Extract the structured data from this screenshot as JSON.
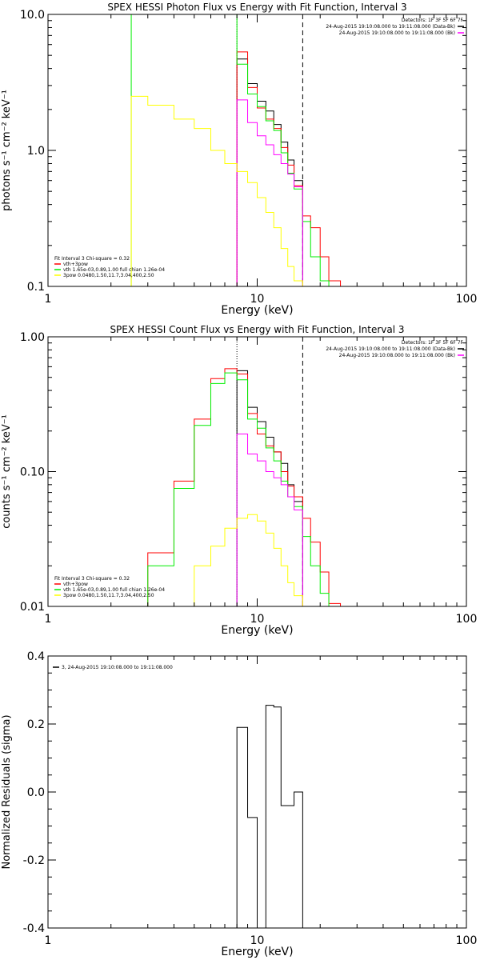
{
  "chart_data": [
    {
      "type": "line",
      "title": "SPEX HESSI Photon Flux vs Energy with Fit Function, Interval 3",
      "xlabel": "Energy (keV)",
      "ylabel": "photons s⁻¹ cm⁻² keV⁻¹",
      "xscale": "log",
      "yscale": "log",
      "xlim": [
        1,
        100
      ],
      "ylim": [
        0.1,
        10
      ],
      "x_ticks": [
        1,
        10,
        100
      ],
      "x_tick_labels": [
        "1",
        "10",
        "100"
      ],
      "y_ticks": [
        0.1,
        1,
        10
      ],
      "y_tick_labels": [
        "0.1",
        "1.0",
        "10.0"
      ],
      "vlines": [
        {
          "x": 8.0,
          "style": "dotted",
          "color": "#000000"
        },
        {
          "x": 16.5,
          "style": "dashed",
          "color": "#000000"
        }
      ],
      "header": [
        "Detectors: 1F 3F 5F 6F 7F"
      ],
      "info_legend": [
        {
          "text": "24-Aug-2015 19:10:08.000 to 19:11:08.000 (Data-Bk)",
          "color": "#000000"
        },
        {
          "text": "24-Aug-2015 19:10:08.000 to 19:11:08.000 (Bk)",
          "color": "#ff00ff"
        }
      ],
      "fit_legend": {
        "header": "Fit Interval 3   Chi-square = 0.32",
        "items": [
          {
            "text": "vth+3pow",
            "color": "#ff0000"
          },
          {
            "text": "vth 1.65e-03,0.89,1.00  full chian 1.26e-04",
            "color": "#00ee00"
          },
          {
            "text": "3pow 0.0480,1.50,11.7,3.04,400,2.50",
            "color": "#ffff00"
          }
        ]
      },
      "series": [
        {
          "color": "#000000",
          "steps": [
            [
              8,
              9,
              4.7
            ],
            [
              9,
              10,
              3.1
            ],
            [
              10,
              11,
              2.3
            ],
            [
              11,
              12,
              1.95
            ],
            [
              12,
              13,
              1.55
            ],
            [
              13,
              14,
              1.15
            ],
            [
              14,
              15,
              0.85
            ],
            [
              15,
              16.5,
              0.6
            ]
          ]
        },
        {
          "color": "#ff0000",
          "steps": [
            [
              8,
              9,
              5.3
            ],
            [
              9,
              10,
              2.9
            ],
            [
              10,
              11,
              2.05
            ],
            [
              11,
              12,
              1.7
            ],
            [
              12,
              13,
              1.45
            ],
            [
              13,
              14,
              1.05
            ],
            [
              14,
              15,
              0.78
            ],
            [
              15,
              16.5,
              0.55
            ],
            [
              16.5,
              18,
              0.33
            ],
            [
              18,
              20,
              0.27
            ],
            [
              20,
              22,
              0.165
            ],
            [
              22,
              25,
              0.11
            ]
          ]
        },
        {
          "color": "#00ee00",
          "steps": [
            [
              2.5,
              8,
              10
            ],
            [
              8,
              9,
              4.3
            ],
            [
              9,
              10,
              2.6
            ],
            [
              10,
              11,
              2.1
            ],
            [
              11,
              12,
              1.65
            ],
            [
              12,
              13,
              1.4
            ],
            [
              13,
              14,
              0.96
            ],
            [
              14,
              15,
              0.68
            ],
            [
              15,
              16.5,
              0.52
            ],
            [
              16.5,
              18,
              0.3
            ],
            [
              18,
              20,
              0.165
            ],
            [
              20,
              22,
              0.11
            ]
          ]
        },
        {
          "color": "#ff00ff",
          "steps": [
            [
              8,
              9,
              2.35
            ],
            [
              9,
              10,
              1.6
            ],
            [
              10,
              11,
              1.28
            ],
            [
              11,
              12,
              1.1
            ],
            [
              12,
              13,
              0.93
            ],
            [
              13,
              14,
              0.8
            ],
            [
              14,
              15,
              0.67
            ],
            [
              15,
              16.5,
              0.54
            ]
          ]
        },
        {
          "color": "#ffff00",
          "steps": [
            [
              2.5,
              3,
              2.5
            ],
            [
              3,
              4,
              2.15
            ],
            [
              4,
              5,
              1.7
            ],
            [
              5,
              6,
              1.45
            ],
            [
              6,
              7,
              1.0
            ],
            [
              7,
              8,
              0.8
            ],
            [
              8,
              9,
              0.7
            ],
            [
              9,
              10,
              0.58
            ],
            [
              10,
              11,
              0.45
            ],
            [
              11,
              12,
              0.35
            ],
            [
              12,
              13,
              0.27
            ],
            [
              13,
              14,
              0.19
            ],
            [
              14,
              15,
              0.14
            ],
            [
              15,
              16.5,
              0.11
            ]
          ]
        }
      ]
    },
    {
      "type": "line",
      "title": "SPEX HESSI Count Flux vs Energy with Fit Function, Interval 3",
      "xlabel": "Energy (keV)",
      "ylabel": "counts s⁻¹ cm⁻² keV⁻¹",
      "xscale": "log",
      "yscale": "log",
      "xlim": [
        1,
        100
      ],
      "ylim": [
        0.01,
        1
      ],
      "x_ticks": [
        1,
        10,
        100
      ],
      "x_tick_labels": [
        "1",
        "10",
        "100"
      ],
      "y_ticks": [
        0.01,
        0.1,
        1
      ],
      "y_tick_labels": [
        "0.01",
        "0.10",
        "1.00"
      ],
      "vlines": [
        {
          "x": 8.0,
          "style": "dotted",
          "color": "#000000"
        },
        {
          "x": 16.5,
          "style": "dashed",
          "color": "#000000"
        }
      ],
      "header": [
        "Detectors: 1F 3F 5F 6F 7F"
      ],
      "info_legend": [
        {
          "text": "24-Aug-2015 19:10:08.000 to 19:11:08.000 (Data-Bk)",
          "color": "#000000"
        },
        {
          "text": "24-Aug-2015 19:10:08.000 to 19:11:08.000 (Bk)",
          "color": "#ff00ff"
        }
      ],
      "fit_legend": {
        "header": "Fit Interval 3   Chi-square = 0.32",
        "items": [
          {
            "text": "vth+3pow",
            "color": "#ff0000"
          },
          {
            "text": "vth 1.65e-03,0.89,1.00  full chian 1.26e-04",
            "color": "#00ee00"
          },
          {
            "text": "3pow 0.0480,1.50,11.7,3.04,400,2.50",
            "color": "#ffff00"
          }
        ]
      },
      "series": [
        {
          "color": "#000000",
          "steps": [
            [
              8,
              9,
              0.56
            ],
            [
              9,
              10,
              0.3
            ],
            [
              10,
              11,
              0.235
            ],
            [
              11,
              12,
              0.18
            ],
            [
              12,
              13,
              0.14
            ],
            [
              13,
              14,
              0.115
            ],
            [
              14,
              15,
              0.08
            ],
            [
              15,
              16.5,
              0.06
            ]
          ]
        },
        {
          "color": "#ff0000",
          "steps": [
            [
              3,
              4,
              0.025
            ],
            [
              4,
              5,
              0.085
            ],
            [
              5,
              6,
              0.245
            ],
            [
              6,
              7,
              0.49
            ],
            [
              7,
              8,
              0.58
            ],
            [
              8,
              9,
              0.53
            ],
            [
              9,
              10,
              0.27
            ],
            [
              10,
              11,
              0.19
            ],
            [
              11,
              12,
              0.155
            ],
            [
              12,
              13,
              0.14
            ],
            [
              13,
              14,
              0.1
            ],
            [
              14,
              15,
              0.078
            ],
            [
              15,
              16.5,
              0.065
            ],
            [
              16.5,
              18,
              0.045
            ],
            [
              18,
              20,
              0.03
            ],
            [
              20,
              22,
              0.018
            ],
            [
              22,
              25,
              0.0105
            ]
          ]
        },
        {
          "color": "#00ee00",
          "steps": [
            [
              3,
              4,
              0.02
            ],
            [
              4,
              5,
              0.075
            ],
            [
              5,
              6,
              0.22
            ],
            [
              6,
              7,
              0.45
            ],
            [
              7,
              8,
              0.54
            ],
            [
              8,
              9,
              0.48
            ],
            [
              9,
              10,
              0.245
            ],
            [
              10,
              11,
              0.21
            ],
            [
              11,
              12,
              0.15
            ],
            [
              12,
              13,
              0.12
            ],
            [
              13,
              14,
              0.085
            ],
            [
              14,
              15,
              0.065
            ],
            [
              15,
              16.5,
              0.055
            ],
            [
              16.5,
              18,
              0.033
            ],
            [
              18,
              20,
              0.02
            ],
            [
              20,
              22,
              0.0125
            ]
          ]
        },
        {
          "color": "#ff00ff",
          "steps": [
            [
              8,
              9,
              0.19
            ],
            [
              9,
              10,
              0.135
            ],
            [
              10,
              11,
              0.12
            ],
            [
              11,
              12,
              0.1
            ],
            [
              12,
              13,
              0.09
            ],
            [
              13,
              14,
              0.08
            ],
            [
              14,
              15,
              0.065
            ],
            [
              15,
              16.5,
              0.052
            ]
          ]
        },
        {
          "color": "#ffff00",
          "steps": [
            [
              3,
              4,
              0.01
            ],
            [
              4,
              5,
              0.01
            ],
            [
              5,
              6,
              0.02
            ],
            [
              6,
              7,
              0.028
            ],
            [
              7,
              8,
              0.038
            ],
            [
              8,
              9,
              0.045
            ],
            [
              9,
              10,
              0.048
            ],
            [
              10,
              11,
              0.043
            ],
            [
              11,
              12,
              0.035
            ],
            [
              12,
              13,
              0.027
            ],
            [
              13,
              14,
              0.02
            ],
            [
              14,
              15,
              0.015
            ],
            [
              15,
              16.5,
              0.012
            ]
          ]
        }
      ]
    },
    {
      "type": "line",
      "title": "",
      "xlabel": "Energy (keV)",
      "ylabel": "Normalized Residuals (sigma)",
      "xscale": "log",
      "yscale": "linear",
      "xlim": [
        1,
        100
      ],
      "ylim": [
        -0.4,
        0.4
      ],
      "x_ticks": [
        1,
        10,
        100
      ],
      "x_tick_labels": [
        "1",
        "10",
        "100"
      ],
      "y_ticks": [
        -0.4,
        -0.2,
        0.0,
        0.2,
        0.4
      ],
      "y_tick_labels": [
        "-0.4",
        "-0.2",
        "0.0",
        "0.2",
        "0.4"
      ],
      "vlines": [],
      "header": [],
      "info_legend": [
        {
          "text": "3, 24-Aug-2015 19:10:08.000 to 19:11:08.000",
          "color": "#000000"
        }
      ],
      "fit_legend": null,
      "series": [
        {
          "color": "#000000",
          "steps": [
            [
              8,
              9,
              0.19
            ],
            [
              9,
              10,
              -0.075
            ],
            [
              10,
              11,
              -0.4
            ],
            [
              11,
              12,
              0.255
            ],
            [
              12,
              13,
              0.25
            ],
            [
              13,
              14,
              -0.04
            ],
            [
              14,
              15,
              -0.04
            ],
            [
              15,
              16.5,
              0.0
            ]
          ]
        }
      ]
    }
  ]
}
